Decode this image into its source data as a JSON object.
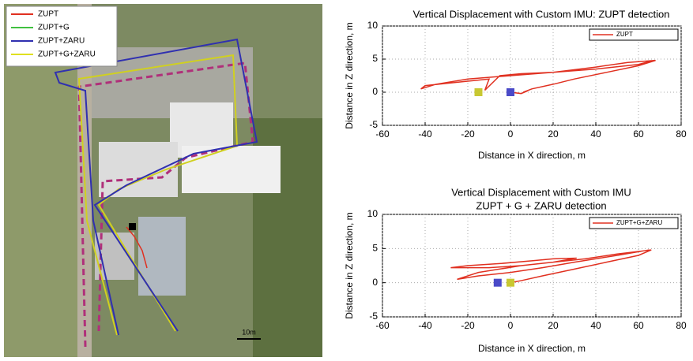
{
  "map": {
    "legend": [
      {
        "name": "ZUPT",
        "color": "#e03020"
      },
      {
        "name": "ZUPT+G",
        "color": "#40c040"
      },
      {
        "name": "ZUPT+ZARU",
        "color": "#3030b0"
      },
      {
        "name": "ZUPT+G+ZARU",
        "color": "#e0e020"
      }
    ],
    "scale_label": "10m"
  },
  "chart_data": [
    {
      "type": "line",
      "title": "Vertical Displacement with Custom IMU: ZUPT detection",
      "xlabel": "Distance in X direction, m",
      "ylabel": "Distance in Z direction, m",
      "xlim": [
        -60,
        80
      ],
      "ylim": [
        -5,
        10
      ],
      "xticks": [
        -60,
        -40,
        -20,
        0,
        20,
        40,
        60,
        80
      ],
      "yticks": [
        -5,
        0,
        5,
        10
      ],
      "grid": true,
      "legend": "upper right",
      "series": [
        {
          "name": "ZUPT",
          "color": "#e03020",
          "x": [
            0,
            5,
            8,
            6,
            10,
            20,
            30,
            45,
            60,
            68,
            55,
            40,
            20,
            0,
            -20,
            -35,
            -42,
            -40,
            -25,
            -10,
            -12,
            -5,
            5,
            20,
            40,
            60,
            67
          ],
          "y": [
            0,
            -0.2,
            0.2,
            0,
            0.5,
            1.2,
            2,
            3,
            4,
            4.8,
            4.5,
            3.8,
            3,
            2.5,
            2,
            1.2,
            0.5,
            1,
            1.5,
            2,
            0.3,
            2.5,
            2.8,
            3,
            3.5,
            4.2,
            4.8
          ]
        }
      ],
      "markers": [
        {
          "color": "#c8c832",
          "x": -15,
          "y": 0
        },
        {
          "color": "#4a4ac8",
          "x": 0,
          "y": 0
        }
      ]
    },
    {
      "type": "line",
      "title": "Vertical Displacement with Custom IMU",
      "subtitle": "ZUPT + G + ZARU detection",
      "xlabel": "Distance in X direction, m",
      "ylabel": "Distance in Z direction, m",
      "xlim": [
        -60,
        80
      ],
      "ylim": [
        -5,
        10
      ],
      "xticks": [
        -60,
        -40,
        -20,
        0,
        20,
        40,
        60,
        80
      ],
      "yticks": [
        -5,
        0,
        5,
        10
      ],
      "grid": true,
      "legend": "upper right",
      "series": [
        {
          "name": "ZUPT+G+ZARU",
          "color": "#e03020",
          "x": [
            0,
            5,
            15,
            30,
            45,
            60,
            66,
            50,
            35,
            20,
            5,
            -10,
            -28,
            -20,
            -5,
            10,
            20,
            31,
            20,
            5,
            -15,
            -25,
            -15,
            0,
            15,
            30,
            50,
            65
          ],
          "y": [
            0,
            0.3,
            1,
            2,
            3,
            4,
            4.8,
            4.2,
            3.5,
            3,
            2.5,
            2.2,
            2.2,
            2.5,
            2.8,
            3.2,
            3.5,
            3.6,
            3,
            2.5,
            1.5,
            0.5,
            1,
            1.5,
            2.2,
            3,
            4,
            4.8
          ]
        }
      ],
      "markers": [
        {
          "color": "#4a4ac8",
          "x": -6,
          "y": 0
        },
        {
          "color": "#c8c832",
          "x": 0,
          "y": 0
        }
      ]
    }
  ]
}
